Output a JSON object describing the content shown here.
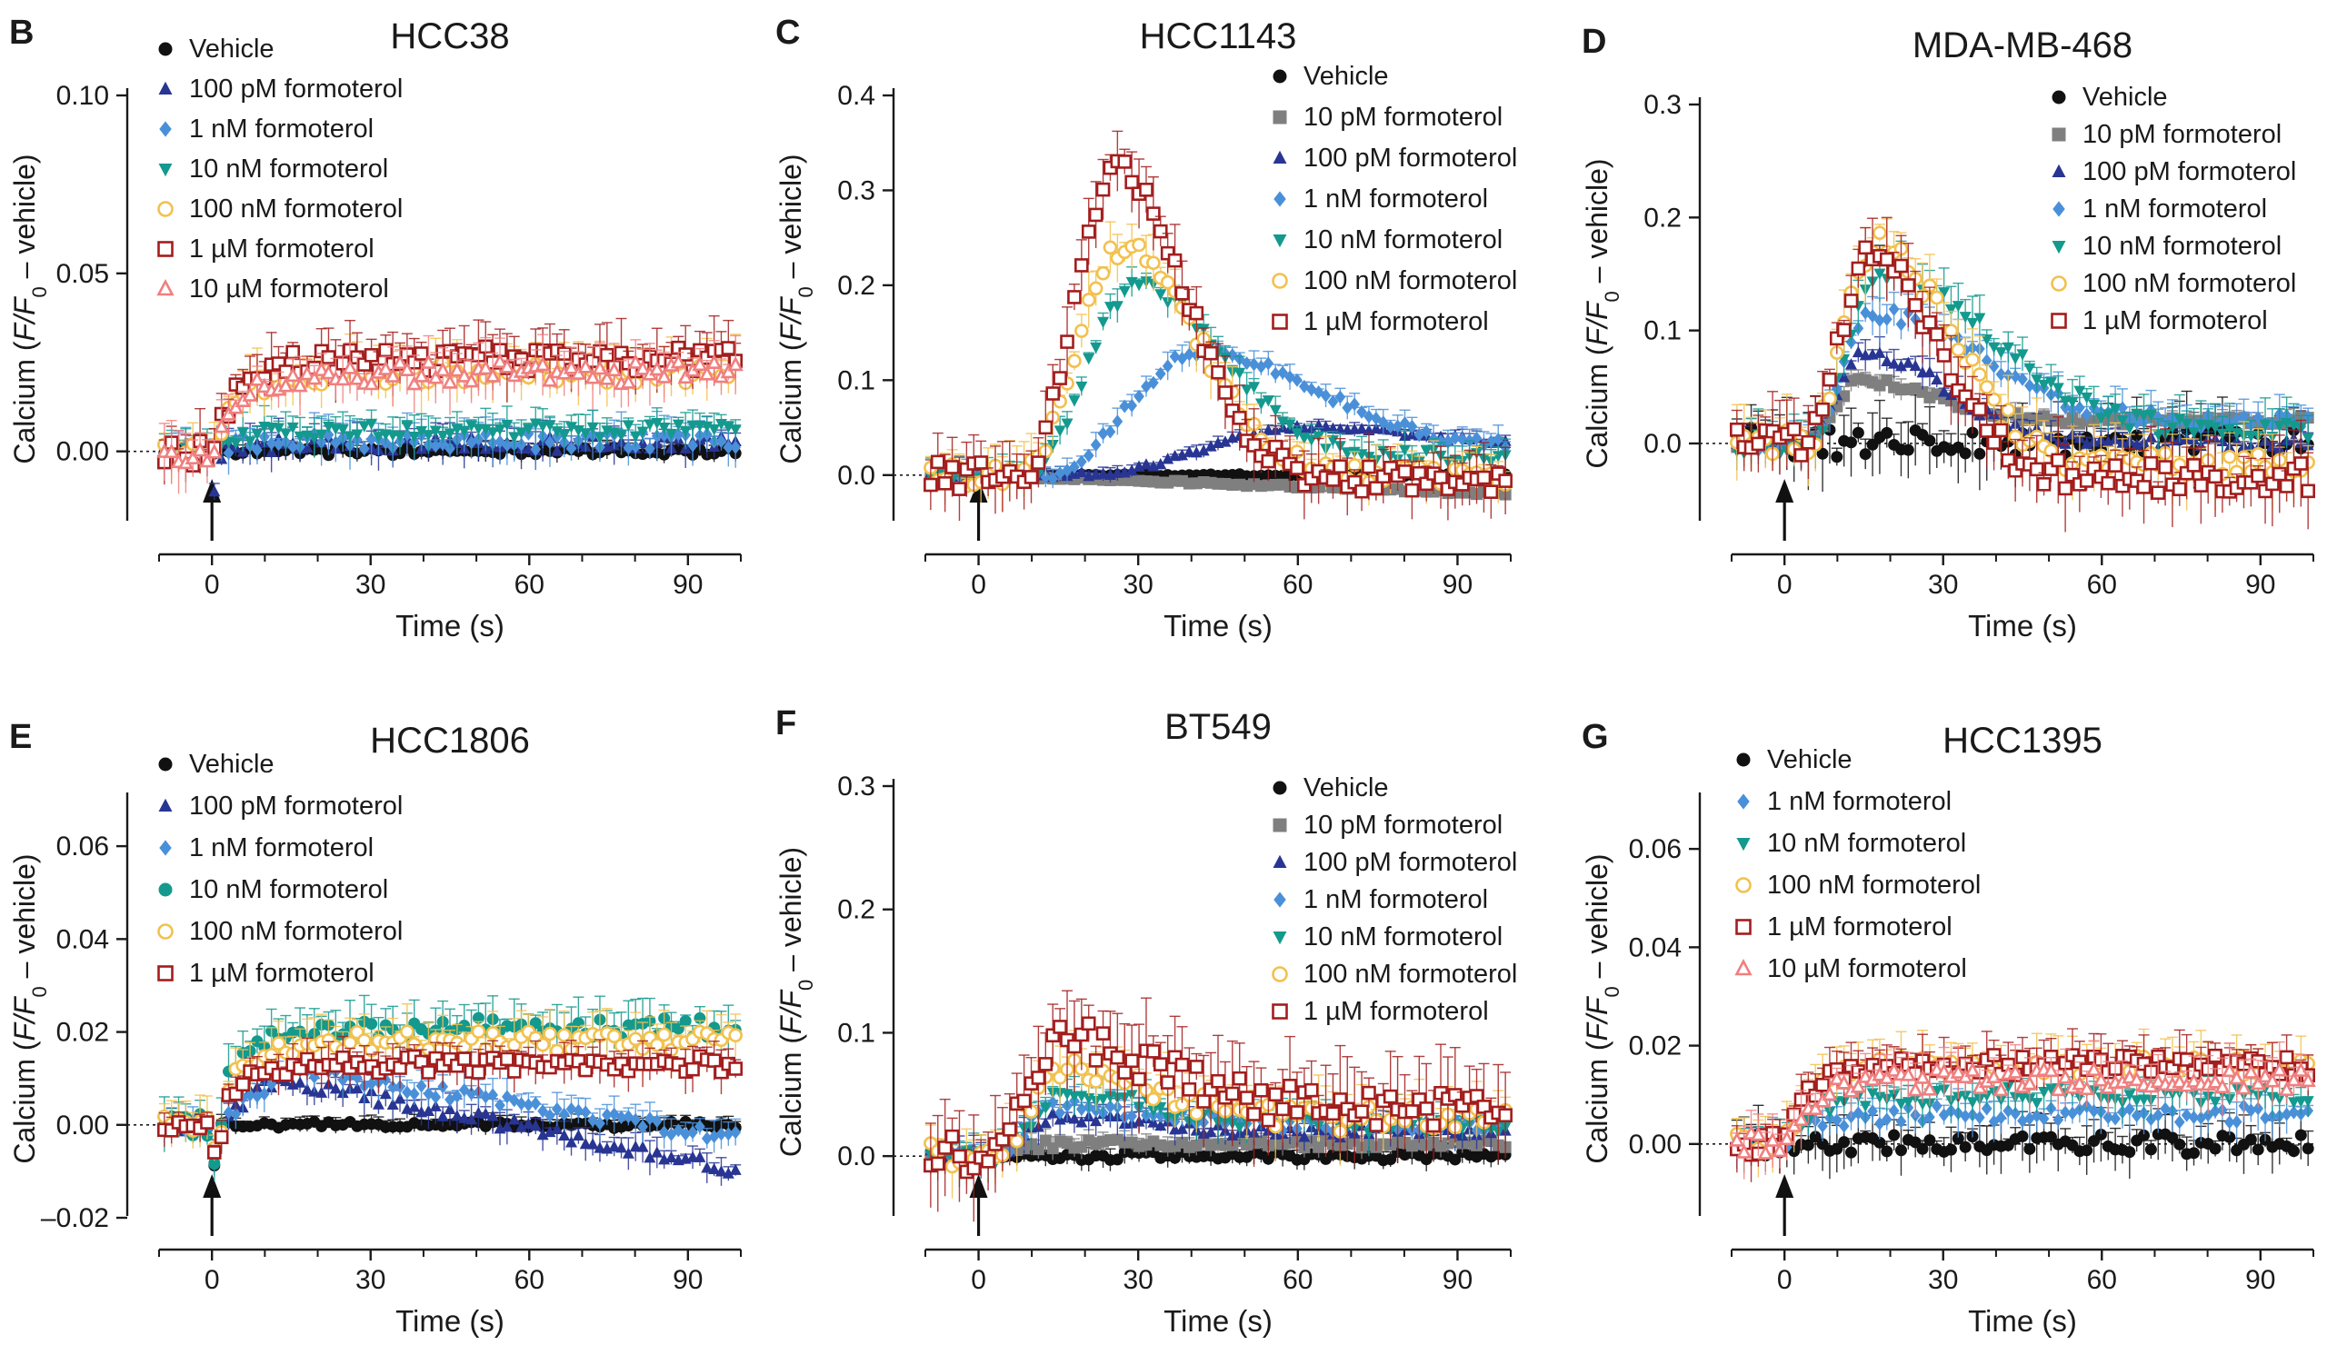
{
  "figure": {
    "x_axis_label": "Time (s)",
    "y_axis_label_parts": [
      "Calcium (",
      "F",
      "/",
      "F",
      "0",
      " – vehicle)"
    ]
  },
  "series_styles": {
    "vehicle": {
      "color": "#111111",
      "marker": "circle-filled"
    },
    "10pM": {
      "color": "#7f7f7f",
      "marker": "square-filled"
    },
    "100pM": {
      "color": "#283593",
      "marker": "triangle-filled"
    },
    "1nM": {
      "color": "#4a90d9",
      "marker": "diamond-filled"
    },
    "10nM": {
      "color": "#14998e",
      "marker": "triangle-down-filled"
    },
    "10nM_circle": {
      "color": "#14998e",
      "marker": "circle-filled"
    },
    "100nM": {
      "color": "#f2c14e",
      "marker": "circle-open"
    },
    "1uM": {
      "color": "#a31d1d",
      "marker": "square-open"
    },
    "10uM": {
      "color": "#f07f7f",
      "marker": "triangle-open"
    }
  },
  "chart_data": [
    {
      "id": "B",
      "type": "scatter",
      "panel_letter": "B",
      "title": "HCC38",
      "xlabel": "Time (s)",
      "ylabel": "Calcium (F/F0 – vehicle)",
      "xlim": [
        -10,
        100
      ],
      "ylim": [
        -0.02,
        0.1
      ],
      "yticks": [
        0.0,
        0.05,
        0.1
      ],
      "ytick_labels": [
        "0.00",
        "0.05",
        "0.10"
      ],
      "xticks": [
        0,
        30,
        60,
        90
      ],
      "xtick_labels": [
        "0",
        "30",
        "60",
        "90"
      ],
      "legend": "top-left",
      "series": [
        {
          "name": "Vehicle",
          "style": "vehicle",
          "profile": {
            "kind": "flat",
            "level": 0.0,
            "err": 0.003
          }
        },
        {
          "name": "100 pM formoterol",
          "style": "100pM",
          "profile": {
            "kind": "plateau",
            "level": 0.002,
            "err": 0.006,
            "dip": -0.012
          }
        },
        {
          "name": "1 nM formoterol",
          "style": "1nM",
          "profile": {
            "kind": "plateau",
            "level": 0.003,
            "err": 0.007
          }
        },
        {
          "name": "10 nM formoterol",
          "style": "10nM",
          "profile": {
            "kind": "plateau",
            "level": 0.006,
            "err": 0.006
          }
        },
        {
          "name": "100 nM formoterol",
          "style": "100nM",
          "profile": {
            "kind": "plateau",
            "level": 0.022,
            "err": 0.009
          }
        },
        {
          "name": "1 µM formoterol",
          "style": "1uM",
          "profile": {
            "kind": "plateau",
            "level": 0.026,
            "err": 0.01
          }
        },
        {
          "name": "10 µM formoterol",
          "style": "10uM",
          "profile": {
            "kind": "plateau",
            "level": 0.022,
            "err": 0.009
          }
        }
      ]
    },
    {
      "id": "C",
      "type": "scatter",
      "panel_letter": "C",
      "title": "HCC1143",
      "xlabel": "Time (s)",
      "ylabel": "Calcium (F/F0 – vehicle)",
      "xlim": [
        -10,
        100
      ],
      "ylim": [
        -0.05,
        0.4
      ],
      "yticks": [
        0.0,
        0.1,
        0.2,
        0.3,
        0.4
      ],
      "ytick_labels": [
        "0.0",
        "0.1",
        "0.2",
        "0.3",
        "0.4"
      ],
      "xticks": [
        0,
        30,
        60,
        90
      ],
      "xtick_labels": [
        "0",
        "30",
        "60",
        "90"
      ],
      "legend": "top-right",
      "series": [
        {
          "name": "Vehicle",
          "style": "vehicle",
          "profile": {
            "kind": "flat",
            "level": 0.0,
            "err": 0.003
          }
        },
        {
          "name": "10 pM formoterol",
          "style": "10pM",
          "profile": {
            "kind": "slope",
            "end": -0.02,
            "err": 0.004
          }
        },
        {
          "name": "100 pM formoterol",
          "style": "100pM",
          "profile": {
            "kind": "peak",
            "peak": 0.05,
            "tpeak": 62,
            "rise": 18,
            "decay": 30,
            "final": 0.03,
            "onset": 20,
            "err": 0.008
          }
        },
        {
          "name": "1 nM formoterol",
          "style": "1nM",
          "profile": {
            "kind": "peak",
            "peak": 0.13,
            "tpeak": 42,
            "rise": 10,
            "decay": 30,
            "final": 0.03,
            "onset": 12,
            "err": 0.015
          }
        },
        {
          "name": "10 nM formoterol",
          "style": "10nM",
          "profile": {
            "kind": "peak",
            "peak": 0.2,
            "tpeak": 30,
            "rise": 7,
            "decay": 22,
            "final": 0.02,
            "onset": 9,
            "err": 0.02
          }
        },
        {
          "name": "100 nM formoterol",
          "style": "100nM",
          "profile": {
            "kind": "peak",
            "peak": 0.24,
            "tpeak": 27,
            "rise": 6,
            "decay": 20,
            "final": 0.0,
            "onset": 8,
            "err": 0.03
          }
        },
        {
          "name": "1 µM formoterol",
          "style": "1uM",
          "profile": {
            "kind": "peak",
            "peak": 0.32,
            "tpeak": 26,
            "rise": 6,
            "decay": 18,
            "final": -0.005,
            "onset": 8,
            "err": 0.04
          }
        }
      ]
    },
    {
      "id": "D",
      "type": "scatter",
      "panel_letter": "D",
      "title": "MDA-MB-468",
      "xlabel": "Time (s)",
      "ylabel": "Calcium (F/F0 – vehicle)",
      "xlim": [
        -10,
        100
      ],
      "ylim": [
        -0.07,
        0.3
      ],
      "yticks": [
        0.0,
        0.1,
        0.2,
        0.3
      ],
      "ytick_labels": [
        "0.0",
        "0.1",
        "0.2",
        "0.3"
      ],
      "xticks": [
        0,
        30,
        60,
        90
      ],
      "xtick_labels": [
        "0",
        "30",
        "60",
        "90"
      ],
      "legend": "top-right",
      "series": [
        {
          "name": "Vehicle",
          "style": "vehicle",
          "profile": {
            "kind": "flat",
            "level": 0.0,
            "err": 0.035
          }
        },
        {
          "name": "10 pM formoterol",
          "style": "10pM",
          "profile": {
            "kind": "peak",
            "peak": 0.055,
            "tpeak": 14,
            "rise": 4,
            "decay": 20,
            "final": 0.02,
            "onset": 4,
            "err": 0.01
          }
        },
        {
          "name": "100 pM formoterol",
          "style": "100pM",
          "profile": {
            "kind": "peak",
            "peak": 0.08,
            "tpeak": 15,
            "rise": 4,
            "decay": 22,
            "final": 0.0,
            "onset": 4,
            "err": 0.015
          }
        },
        {
          "name": "1 nM formoterol",
          "style": "1nM",
          "profile": {
            "kind": "peak",
            "peak": 0.115,
            "tpeak": 17,
            "rise": 4,
            "decay": 28,
            "final": 0.02,
            "onset": 4,
            "err": 0.02
          }
        },
        {
          "name": "10 nM formoterol",
          "style": "10nM",
          "profile": {
            "kind": "peak",
            "peak": 0.15,
            "tpeak": 18,
            "rise": 5,
            "decay": 30,
            "final": 0.01,
            "onset": 4,
            "err": 0.025
          }
        },
        {
          "name": "100 nM formoterol",
          "style": "100nM",
          "profile": {
            "kind": "peak",
            "peak": 0.175,
            "tpeak": 17,
            "rise": 5,
            "decay": 20,
            "final": -0.02,
            "onset": 4,
            "err": 0.035
          }
        },
        {
          "name": "1 µM formoterol",
          "style": "1uM",
          "profile": {
            "kind": "peak",
            "peak": 0.17,
            "tpeak": 16,
            "rise": 5,
            "decay": 18,
            "final": -0.03,
            "onset": 4,
            "err": 0.04
          }
        }
      ]
    },
    {
      "id": "E",
      "type": "scatter",
      "panel_letter": "E",
      "title": "HCC1806",
      "xlabel": "Time (s)",
      "ylabel": "Calcium (F/F0 – vehicle)",
      "xlim": [
        -10,
        100
      ],
      "ylim": [
        -0.02,
        0.07
      ],
      "yticks": [
        -0.02,
        0.0,
        0.02,
        0.04,
        0.06
      ],
      "ytick_labels": [
        "–0.02",
        "0.00",
        "0.02",
        "0.04",
        "0.06"
      ],
      "xticks": [
        0,
        30,
        60,
        90
      ],
      "xtick_labels": [
        "0",
        "30",
        "60",
        "90"
      ],
      "legend": "top-left",
      "series": [
        {
          "name": "Vehicle",
          "style": "vehicle",
          "profile": {
            "kind": "flat",
            "level": 0.0,
            "err": 0.002,
            "dip": -0.009
          }
        },
        {
          "name": "100 pM formoterol",
          "style": "100pM",
          "profile": {
            "kind": "risefall",
            "up": 0.01,
            "tup": 12,
            "end": -0.01,
            "err": 0.004,
            "dip": -0.009
          }
        },
        {
          "name": "1 nM formoterol",
          "style": "1nM",
          "profile": {
            "kind": "risefall",
            "up": 0.012,
            "tup": 15,
            "end": -0.003,
            "err": 0.004,
            "dip": -0.009
          }
        },
        {
          "name": "10 nM formoterol",
          "style": "10nM_circle",
          "profile": {
            "kind": "plateau",
            "level": 0.021,
            "err": 0.006,
            "dip": -0.009
          }
        },
        {
          "name": "100 nM formoterol",
          "style": "100nM",
          "profile": {
            "kind": "plateau",
            "level": 0.018,
            "err": 0.006,
            "dip": -0.009
          }
        },
        {
          "name": "1 µM formoterol",
          "style": "1uM",
          "profile": {
            "kind": "plateau",
            "level": 0.013,
            "err": 0.005,
            "dip": -0.009
          }
        }
      ]
    },
    {
      "id": "F",
      "type": "scatter",
      "panel_letter": "F",
      "title": "BT549",
      "xlabel": "Time (s)",
      "ylabel": "Calcium (F/F0 – vehicle)",
      "xlim": [
        -10,
        100
      ],
      "ylim": [
        -0.05,
        0.3
      ],
      "yticks": [
        0.0,
        0.1,
        0.2,
        0.3
      ],
      "ytick_labels": [
        "0.0",
        "0.1",
        "0.2",
        "0.3"
      ],
      "xticks": [
        0,
        30,
        60,
        90
      ],
      "xtick_labels": [
        "0",
        "30",
        "60",
        "90"
      ],
      "legend": "top-right",
      "series": [
        {
          "name": "Vehicle",
          "style": "vehicle",
          "profile": {
            "kind": "flat",
            "level": 0.0,
            "err": 0.01
          }
        },
        {
          "name": "10 pM formoterol",
          "style": "10pM",
          "profile": {
            "kind": "plateau",
            "level": 0.01,
            "err": 0.01
          }
        },
        {
          "name": "100 pM formoterol",
          "style": "100pM",
          "profile": {
            "kind": "peak",
            "peak": 0.03,
            "tpeak": 15,
            "rise": 5,
            "decay": 25,
            "final": 0.02,
            "onset": 2,
            "err": 0.015
          }
        },
        {
          "name": "1 nM formoterol",
          "style": "1nM",
          "profile": {
            "kind": "peak",
            "peak": 0.04,
            "tpeak": 15,
            "rise": 5,
            "decay": 25,
            "final": 0.025,
            "onset": 2,
            "err": 0.015
          }
        },
        {
          "name": "10 nM formoterol",
          "style": "10nM",
          "profile": {
            "kind": "peak",
            "peak": 0.05,
            "tpeak": 16,
            "rise": 5,
            "decay": 25,
            "final": 0.025,
            "onset": 2,
            "err": 0.02
          }
        },
        {
          "name": "100 nM formoterol",
          "style": "100nM",
          "profile": {
            "kind": "peak",
            "peak": 0.07,
            "tpeak": 16,
            "rise": 5,
            "decay": 25,
            "final": 0.03,
            "onset": 2,
            "err": 0.03
          }
        },
        {
          "name": "1 µM formoterol",
          "style": "1uM",
          "profile": {
            "kind": "peak",
            "peak": 0.095,
            "tpeak": 15,
            "rise": 5,
            "decay": 25,
            "final": 0.04,
            "onset": 2,
            "err": 0.045
          }
        }
      ]
    },
    {
      "id": "G",
      "type": "scatter",
      "panel_letter": "G",
      "title": "HCC1395",
      "xlabel": "Time (s)",
      "ylabel": "Calcium (F/F0 – vehicle)",
      "xlim": [
        -10,
        100
      ],
      "ylim": [
        -0.015,
        0.07
      ],
      "yticks": [
        0.0,
        0.02,
        0.04,
        0.06
      ],
      "ytick_labels": [
        "0.00",
        "0.02",
        "0.04",
        "0.06"
      ],
      "xticks": [
        0,
        30,
        60,
        90
      ],
      "xtick_labels": [
        "0",
        "30",
        "60",
        "90"
      ],
      "legend": "top-left",
      "series": [
        {
          "name": "Vehicle",
          "style": "vehicle",
          "profile": {
            "kind": "flat",
            "level": 0.0,
            "err": 0.006
          }
        },
        {
          "name": "1 nM formoterol",
          "style": "1nM",
          "profile": {
            "kind": "plateau",
            "level": 0.006,
            "err": 0.005
          }
        },
        {
          "name": "10 nM formoterol",
          "style": "10nM",
          "profile": {
            "kind": "plateau",
            "level": 0.01,
            "err": 0.005
          }
        },
        {
          "name": "100 nM formoterol",
          "style": "100nM",
          "profile": {
            "kind": "plateau",
            "level": 0.016,
            "err": 0.006
          }
        },
        {
          "name": "1 µM formoterol",
          "style": "1uM",
          "profile": {
            "kind": "plateau",
            "level": 0.016,
            "err": 0.006
          }
        },
        {
          "name": "10 µM formoterol",
          "style": "10uM",
          "profile": {
            "kind": "plateau",
            "level": 0.013,
            "err": 0.006
          }
        }
      ]
    }
  ]
}
